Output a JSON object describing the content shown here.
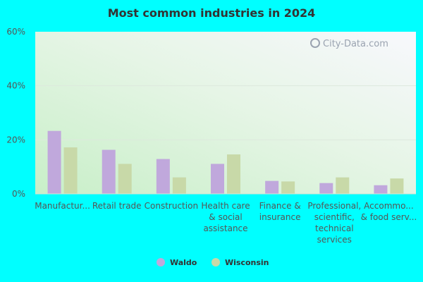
{
  "chart_data": {
    "type": "bar",
    "title": "Most common industries in 2024",
    "categories": [
      [
        "Manufactur..."
      ],
      [
        "Retail trade"
      ],
      [
        "Construction"
      ],
      [
        "Health care",
        "& social",
        "assistance"
      ],
      [
        "Finance &",
        "insurance"
      ],
      [
        "Professional,",
        "scientific,",
        "technical",
        "services"
      ],
      [
        "Accommo...",
        "& food serv..."
      ]
    ],
    "series": [
      {
        "name": "Waldo",
        "color": "#c0a8dc",
        "values": [
          23.3,
          16.3,
          12.9,
          11.1,
          4.8,
          4.0,
          3.2
        ]
      },
      {
        "name": "Wisconsin",
        "color": "#c8d9a8",
        "values": [
          17.2,
          11.1,
          6.1,
          14.6,
          4.6,
          6.1,
          5.7
        ]
      }
    ],
    "yticks": [
      "0%",
      "20%",
      "40%",
      "60%"
    ],
    "ylim": [
      0,
      60
    ],
    "legend_position": "bottom",
    "watermark": "City-Data.com"
  }
}
